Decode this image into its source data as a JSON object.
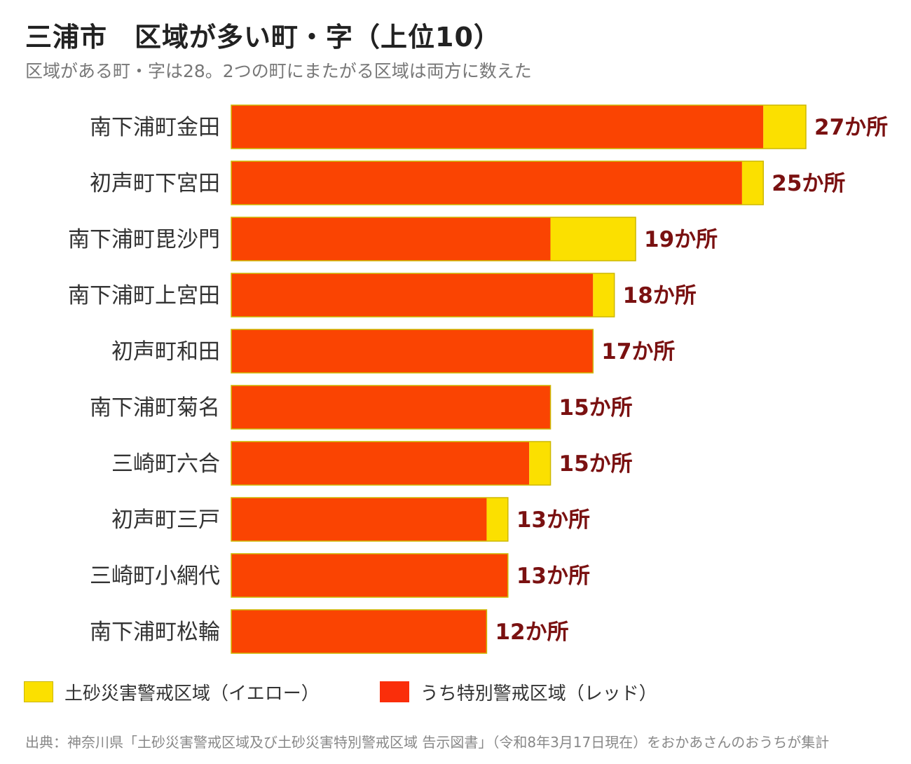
{
  "header": {
    "title": "三浦市　区域が多い町・字（上位10）",
    "subtitle": "区域がある町・字は28。2つの町にまたがる区域は両方に数えた"
  },
  "chart_data": {
    "type": "bar",
    "orientation": "horizontal",
    "stacked": true,
    "categories": [
      "南下浦町金田",
      "初声町下宮田",
      "南下浦町毘沙門",
      "南下浦町上宮田",
      "初声町和田",
      "南下浦町菊名",
      "三崎町六合",
      "初声町三戸",
      "三崎町小網代",
      "南下浦町松輪"
    ],
    "series": [
      {
        "name": "うち特別警戒区域（レッド）",
        "color": "#fa4402",
        "values": [
          25,
          24,
          15,
          17,
          17,
          15,
          14,
          12,
          13,
          12
        ]
      },
      {
        "name": "土砂災害警戒区域（イエロー）",
        "color": "#fbe000",
        "values": [
          2,
          1,
          4,
          1,
          0,
          0,
          1,
          1,
          0,
          0
        ]
      }
    ],
    "totals": [
      27,
      25,
      19,
      18,
      17,
      15,
      15,
      13,
      13,
      12
    ],
    "value_labels": [
      "27か所",
      "25か所",
      "19か所",
      "18か所",
      "17か所",
      "15か所",
      "15か所",
      "13か所",
      "13か所",
      "12か所"
    ],
    "xlim": [
      0,
      27
    ],
    "grid": false
  },
  "legend": {
    "items": [
      {
        "label": "土砂災害警戒区域（イエロー）",
        "color": "#fbe000"
      },
      {
        "label": "うち特別警戒区域（レッド）",
        "color": "#fa4402"
      }
    ]
  },
  "footer": {
    "source": "出典：神奈川県「土砂災害警戒区域及び土砂災害特別警戒区域 告示図書」（令和8年3月17日現在）をおかあさんのおうちが集計"
  }
}
